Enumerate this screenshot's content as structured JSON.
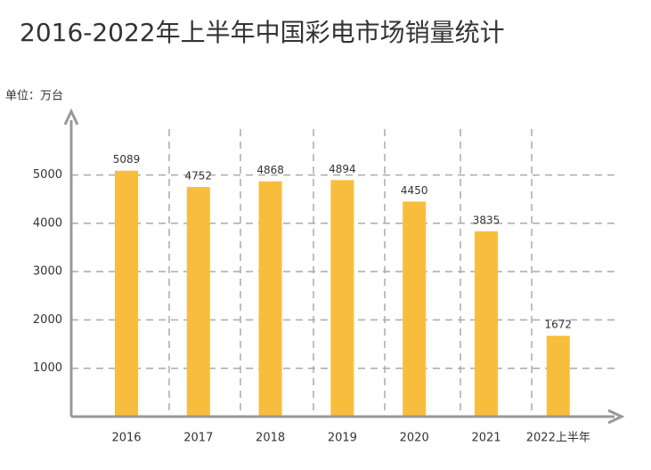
{
  "chart_data": {
    "type": "bar",
    "title": "2016-2022年上半年中国彩电市场销量统计",
    "unit_label": "单位：万台",
    "categories": [
      "2016",
      "2017",
      "2018",
      "2019",
      "2020",
      "2021",
      "2022上半年"
    ],
    "values": [
      5089,
      4752,
      4868,
      4894,
      4450,
      3835,
      1672
    ],
    "color": "#f9bd3e",
    "ylim": [
      0,
      6300
    ],
    "yticks": [
      1000,
      2000,
      3000,
      4000,
      5000
    ],
    "grid": true
  }
}
